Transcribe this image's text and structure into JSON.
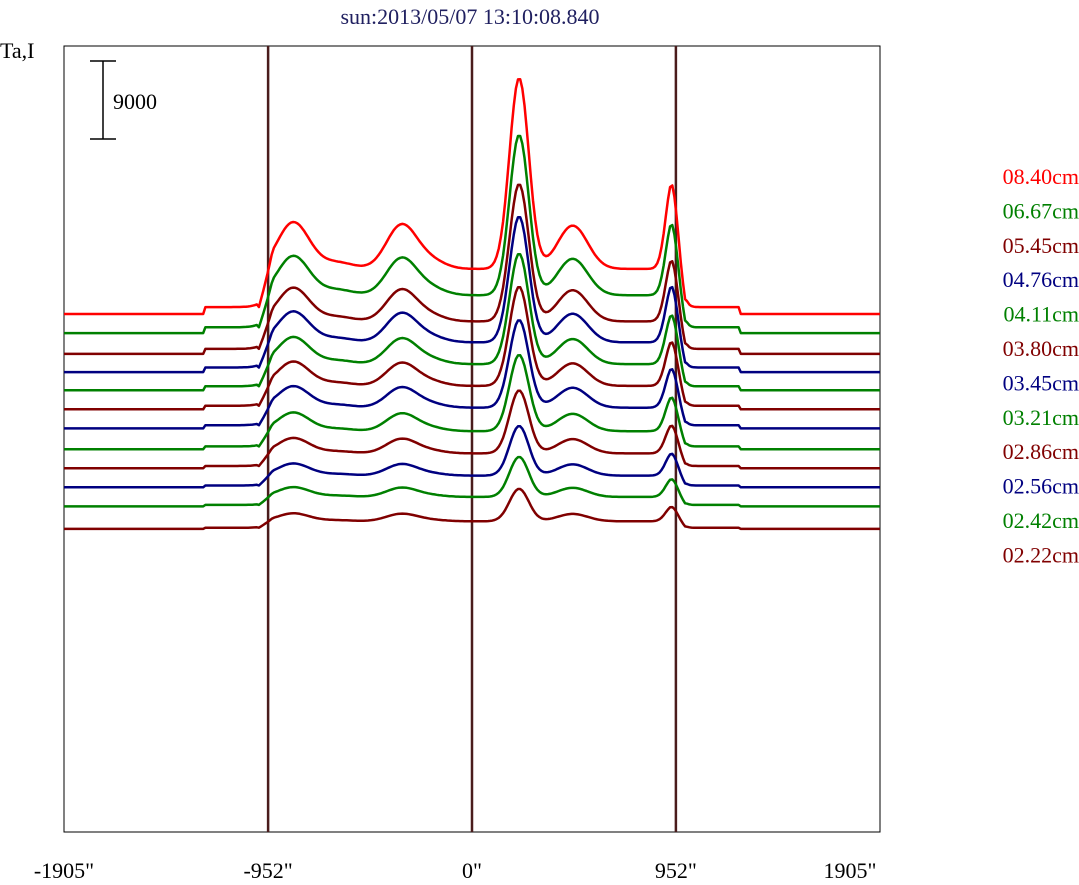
{
  "chart_data": {
    "type": "line",
    "title": "sun:2013/05/07 13:10:08.840",
    "ylabel": "Ta,I",
    "scale_bar": {
      "label": "9000",
      "value": 9000
    },
    "x_axis": {
      "ticks": [
        -1905,
        -952,
        0,
        952,
        1905
      ],
      "tick_labels": [
        "-1905\"",
        "-952\"",
        "0\"",
        "952\"",
        "1905\""
      ],
      "range": [
        -1905,
        1905
      ]
    },
    "vertical_markers": [
      -952,
      0,
      952
    ],
    "peaks": [
      {
        "x": -840,
        "y": 9000
      },
      {
        "x": -760,
        "y": 2500
      },
      {
        "x": -620,
        "y": 2300
      },
      {
        "x": -330,
        "y": 9000
      },
      {
        "x": -200,
        "y": 5000
      },
      {
        "x": 220,
        "y": 26000
      },
      {
        "x": 470,
        "y": 9000
      },
      {
        "x": 935,
        "y": 14000
      }
    ],
    "series": [
      {
        "name": "08.40cm",
        "color": "#ff0000",
        "baseline": 0,
        "amp": 1.0
      },
      {
        "name": "06.67cm",
        "color": "#008000",
        "baseline": -2200,
        "amp": 0.84
      },
      {
        "name": "05.45cm",
        "color": "#800000",
        "baseline": -4600,
        "amp": 0.72
      },
      {
        "name": "04.76cm",
        "color": "#000080",
        "baseline": -6700,
        "amp": 0.66
      },
      {
        "name": "04.11cm",
        "color": "#008000",
        "baseline": -8800,
        "amp": 0.58
      },
      {
        "name": "03.80cm",
        "color": "#800000",
        "baseline": -11000,
        "amp": 0.52
      },
      {
        "name": "03.45cm",
        "color": "#000080",
        "baseline": -13200,
        "amp": 0.46
      },
      {
        "name": "03.21cm",
        "color": "#008000",
        "baseline": -15600,
        "amp": 0.4
      },
      {
        "name": "02.86cm",
        "color": "#800000",
        "baseline": -17800,
        "amp": 0.33
      },
      {
        "name": "02.56cm",
        "color": "#000080",
        "baseline": -20000,
        "amp": 0.26
      },
      {
        "name": "02.42cm",
        "color": "#008000",
        "baseline": -22200,
        "amp": 0.21
      },
      {
        "name": "02.22cm",
        "color": "#800000",
        "baseline": -24800,
        "amp": 0.17
      }
    ]
  }
}
